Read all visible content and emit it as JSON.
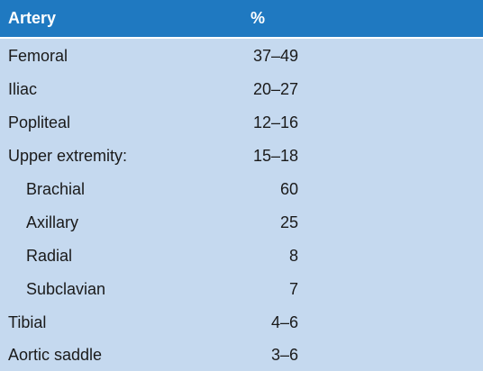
{
  "table": {
    "headers": {
      "artery": "Artery",
      "percent": "%"
    },
    "rows": [
      {
        "name": "Femoral",
        "value": "37–49",
        "indent": 0
      },
      {
        "name": "Iliac",
        "value": "20–27",
        "indent": 0
      },
      {
        "name": "Popliteal",
        "value": "12–16",
        "indent": 0
      },
      {
        "name": "Upper extremity:",
        "value": "15–18",
        "indent": 0
      },
      {
        "name": "Brachial",
        "value": "60",
        "indent": 1
      },
      {
        "name": "Axillary",
        "value": "25",
        "indent": 1
      },
      {
        "name": "Radial",
        "value": "8",
        "indent": 1
      },
      {
        "name": "Subclavian",
        "value": "7",
        "indent": 1
      },
      {
        "name": "Tibial",
        "value": "4–6",
        "indent": 0
      },
      {
        "name": "Aortic saddle",
        "value": "3–6",
        "indent": 0
      }
    ]
  },
  "colors": {
    "header_bg": "#1f79c1",
    "body_bg": "#c5d9ef",
    "header_text": "#ffffff",
    "body_text": "#1a1a1a"
  }
}
